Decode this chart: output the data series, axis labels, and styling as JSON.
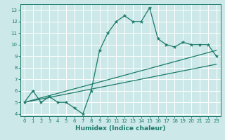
{
  "xlabel": "Humidex (Indice chaleur)",
  "bg_color": "#cce8e8",
  "grid_color": "#ffffff",
  "line_color": "#1a7a6a",
  "xlim": [
    -0.5,
    23.5
  ],
  "ylim": [
    3.8,
    13.5
  ],
  "yticks": [
    4,
    5,
    6,
    7,
    8,
    9,
    10,
    11,
    12,
    13
  ],
  "xticks": [
    0,
    1,
    2,
    3,
    4,
    5,
    6,
    7,
    8,
    9,
    10,
    11,
    12,
    13,
    14,
    15,
    16,
    17,
    18,
    19,
    20,
    21,
    22,
    23
  ],
  "curve1_x": [
    0,
    1,
    2,
    3,
    4,
    5,
    6,
    7,
    8,
    9,
    10,
    11,
    12,
    13,
    14,
    15,
    16,
    17,
    18,
    19,
    20,
    21,
    22,
    23
  ],
  "curve1_y": [
    5,
    6,
    5,
    5.5,
    5,
    5,
    4.5,
    4,
    6,
    9.5,
    11,
    12,
    12.5,
    12,
    12,
    13.2,
    10.5,
    10,
    9.8,
    10.2,
    10,
    10,
    10,
    9
  ],
  "line1_x": [
    0,
    23
  ],
  "line1_y": [
    5,
    9.5
  ],
  "line2_x": [
    0,
    23
  ],
  "line2_y": [
    5,
    8.3
  ]
}
